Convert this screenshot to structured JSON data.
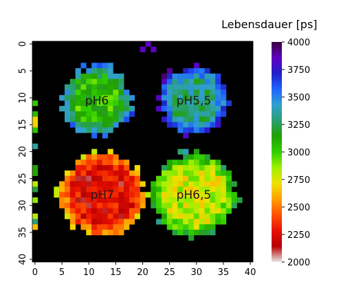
{
  "chart_data": {
    "type": "heatmap",
    "title": "",
    "xlabel": "",
    "ylabel": "",
    "x_ticks": [
      0,
      5,
      10,
      15,
      20,
      25,
      30,
      35,
      40
    ],
    "y_ticks": [
      0,
      5,
      10,
      15,
      20,
      25,
      30,
      35,
      40
    ],
    "grid_size": [
      41,
      41
    ],
    "background_value": null,
    "colorbar": {
      "label": "Lebensdauer [ps]",
      "range": [
        2000,
        4000
      ],
      "ticks": [
        2000,
        2250,
        2500,
        2750,
        3000,
        3250,
        3500,
        3750,
        4000
      ],
      "colormap": [
        "#e8e8e8",
        "#b80000",
        "#e81000",
        "#ff5000",
        "#ffa000",
        "#f0e000",
        "#a0f000",
        "#30d000",
        "#22a000",
        "#2aa070",
        "#30a0d0",
        "#1e64ff",
        "#2020c8",
        "#6000c0",
        "#3c003c"
      ]
    },
    "wells": [
      {
        "label": "pH6",
        "center_x": 11.5,
        "center_y": 10.5,
        "radius": 6.5,
        "mean_lifetime": 3050
      },
      {
        "label": "pH5,5",
        "center_x": 29.5,
        "center_y": 10.5,
        "radius": 6.5,
        "mean_lifetime": 3300
      },
      {
        "label": "pH7",
        "center_x": 12.5,
        "center_y": 28.0,
        "radius": 8.0,
        "mean_lifetime": 2250
      },
      {
        "label": "pH6,5",
        "center_x": 29.5,
        "center_y": 28.0,
        "radius": 8.0,
        "mean_lifetime": 2800
      }
    ]
  }
}
